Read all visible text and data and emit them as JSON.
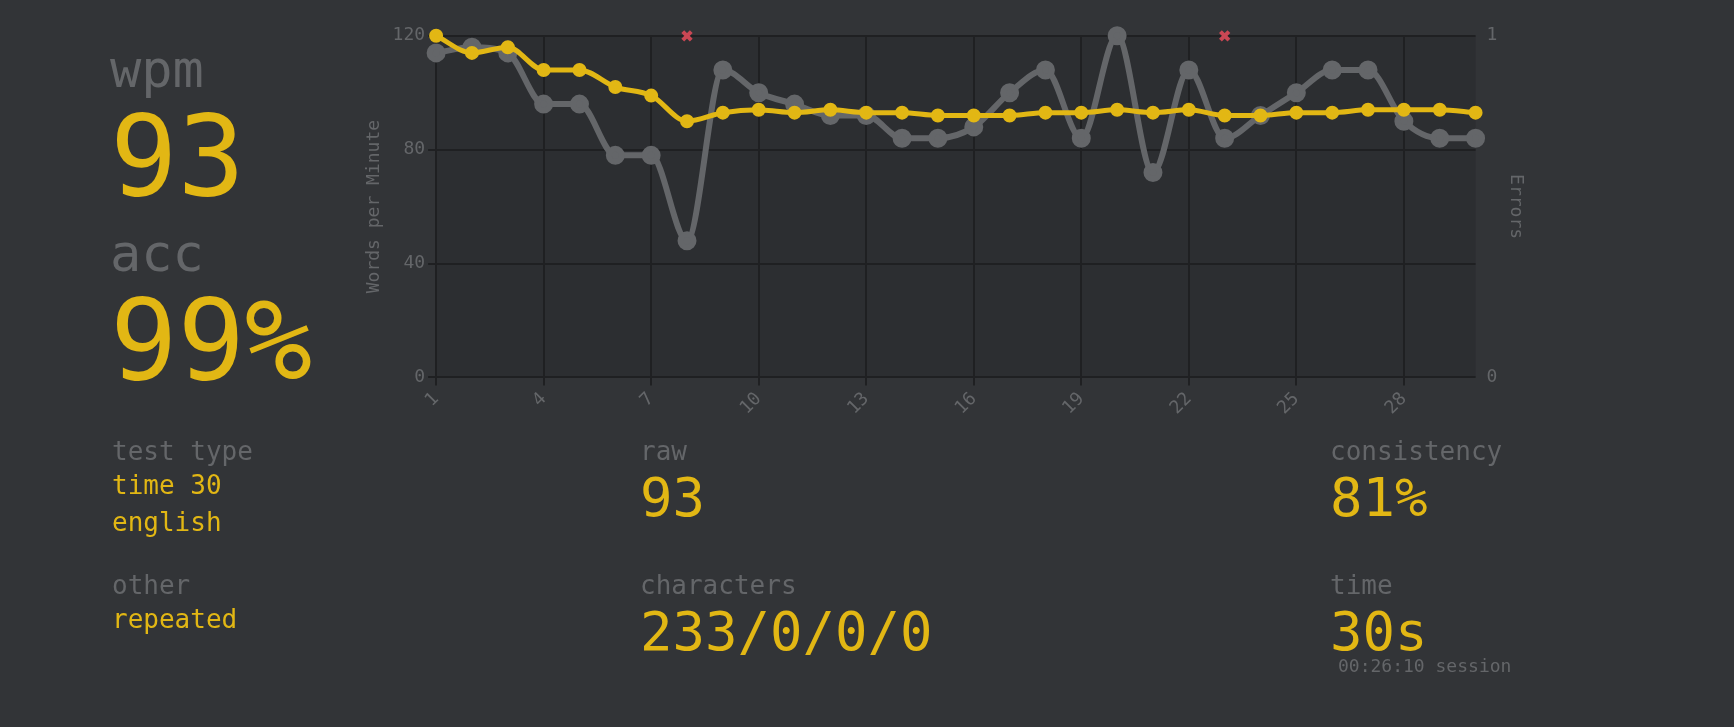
{
  "chart_data": [
    {
      "type": "line",
      "ylabel": "Words per Minute",
      "y2label": "Errors",
      "categories": [
        "1",
        null,
        null,
        "4",
        null,
        null,
        "7",
        null,
        null,
        "10",
        null,
        null,
        "13",
        null,
        null,
        "16",
        null,
        null,
        "19",
        null,
        null,
        "22",
        null,
        null,
        "25",
        null,
        null,
        "28",
        null,
        null
      ],
      "series": [
        {
          "type": "scatter",
          "axis": "y2",
          "color": "#ca4754",
          "marker": "cross",
          "values": [
            null,
            null,
            null,
            null,
            null,
            null,
            null,
            1,
            null,
            null,
            null,
            null,
            null,
            null,
            null,
            null,
            null,
            null,
            null,
            null,
            null,
            null,
            1,
            null,
            null,
            null,
            null,
            null,
            null,
            null
          ]
        },
        {
          "color": "#e2b714",
          "values": [
            120,
            114,
            116,
            108,
            108,
            102,
            99,
            90,
            93,
            94,
            93,
            94,
            93,
            93,
            92,
            92,
            92,
            93,
            93,
            94,
            93,
            94,
            92,
            92,
            93,
            93,
            94,
            94,
            94,
            93
          ]
        },
        {
          "color": "#646669",
          "values": [
            114,
            116,
            114,
            96,
            96,
            78,
            78,
            48,
            108,
            100,
            96,
            92,
            92,
            84,
            84,
            88,
            100,
            108,
            84,
            120,
            72,
            108,
            84,
            92,
            100,
            108,
            108,
            90,
            84,
            84
          ]
        }
      ],
      "ylim": [
        0,
        120
      ],
      "yticks": [
        0,
        40,
        80,
        120
      ],
      "y2lim": [
        0,
        1
      ],
      "y2ticks": [
        0,
        1
      ],
      "grid": true,
      "legend": false,
      "marker": "circle",
      "line_style": "solid"
    },
    {
      "type": "other",
      "title": "wpm",
      "annotations": [
        "93"
      ]
    },
    {
      "type": "other",
      "title": "acc",
      "annotations": [
        "99%"
      ]
    },
    {
      "type": "other",
      "title": "test type",
      "annotations": [
        "time 30",
        "english"
      ]
    },
    {
      "type": "other",
      "title": "other",
      "annotations": [
        "repeated"
      ]
    },
    {
      "type": "other",
      "title": "raw",
      "annotations": [
        "93"
      ]
    },
    {
      "type": "other",
      "title": "characters",
      "annotations": [
        "233/0/0/0"
      ]
    },
    {
      "type": "other",
      "title": "consistency",
      "annotations": [
        "81%"
      ]
    },
    {
      "type": "other",
      "title": "time",
      "annotations": [
        "30s",
        "00:26:10 session"
      ]
    }
  ]
}
